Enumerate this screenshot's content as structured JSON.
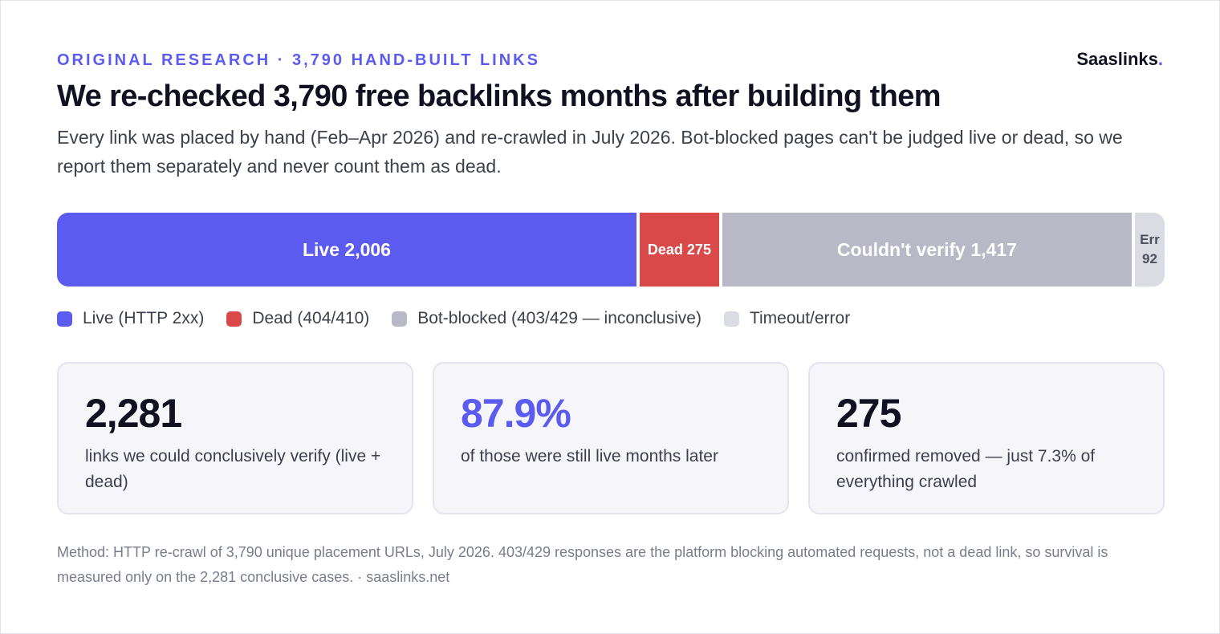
{
  "eyebrow": "ORIGINAL RESEARCH · 3,790 HAND-BUILT LINKS",
  "brand": {
    "name": "Saaslinks",
    "dot": "."
  },
  "title": "We re-checked 3,790 free backlinks months after building them",
  "subtitle": "Every link was placed by hand (Feb–Apr 2026) and re-crawled in July 2026. Bot-blocked pages can't be judged live or dead, so we report them separately and never count them as dead.",
  "chart_data": {
    "type": "bar",
    "orientation": "horizontal-stacked",
    "total": 3790,
    "segments": [
      {
        "key": "live",
        "label": "Live 2,006",
        "value": 2006,
        "color": "#5b5bf0",
        "text_color": "#ffffff"
      },
      {
        "key": "dead",
        "label": "Dead 275",
        "value": 275,
        "color": "#d9494a",
        "text_color": "#ffffff"
      },
      {
        "key": "blocked",
        "label": "Couldn't verify 1,417",
        "value": 1417,
        "color": "#b9b8c6",
        "text_color": "#ffffff"
      },
      {
        "key": "err",
        "label": "Err 92",
        "value": 92,
        "color": "#dbdbe3",
        "text_color": "#4d4f5c"
      }
    ],
    "legend": [
      {
        "label": "Live (HTTP 2xx)",
        "color": "#5b5bf0"
      },
      {
        "label": "Dead (404/410)",
        "color": "#d9494a"
      },
      {
        "label": "Bot-blocked (403/429 — inconclusive)",
        "color": "#b9b8c6"
      },
      {
        "label": "Timeout/error",
        "color": "#dbdbe3"
      }
    ],
    "legend_position": "bottom-left"
  },
  "stats": [
    {
      "value": "2,281",
      "desc": "links we could conclusively verify (live + dead)",
      "accent": false
    },
    {
      "value": "87.9%",
      "desc": "of those were still live months later",
      "accent": true
    },
    {
      "value": "275",
      "desc": "confirmed removed — just 7.3% of everything crawled",
      "accent": false
    }
  ],
  "footnote": "Method: HTTP re-crawl of 3,790 unique placement URLs, July 2026. 403/429 responses are the platform blocking automated requests, not a dead link, so survival is measured only on the 2,281 conclusive cases. · saaslinks.net"
}
